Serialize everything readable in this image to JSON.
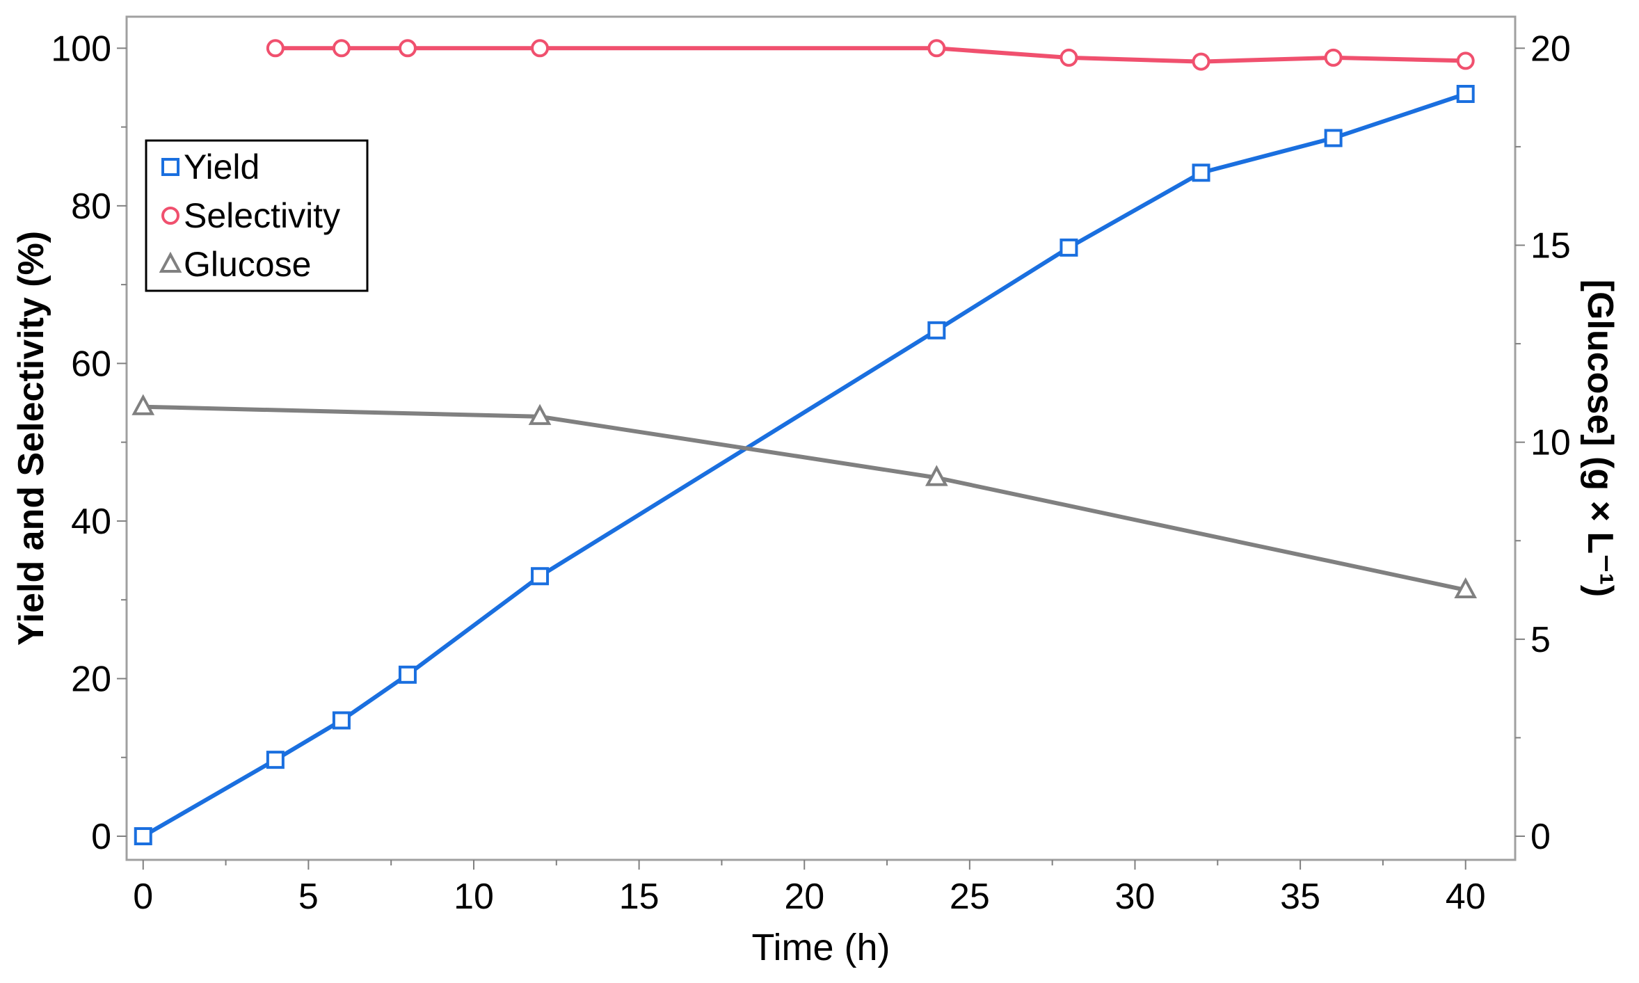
{
  "chart_data": {
    "type": "line",
    "title": "",
    "xlabel": "Time (h)",
    "ylabel": "Yield and Selectivity (%)",
    "y2label": "[Glucose] (g × L⁻¹)",
    "xlim": [
      -0.5,
      41.5
    ],
    "ylim": [
      -3,
      104
    ],
    "y2lim": [
      -0.6,
      20.8
    ],
    "xticks": [
      0,
      5,
      10,
      15,
      20,
      25,
      30,
      35,
      40
    ],
    "yticks": [
      0,
      20,
      40,
      60,
      80,
      100
    ],
    "y2ticks": [
      0,
      5,
      10,
      15,
      20
    ],
    "grid": false,
    "legend_position": "top-left",
    "series": [
      {
        "name": "Yield",
        "axis": "left",
        "marker": "square",
        "color": "#1a6fdf",
        "x": [
          0,
          4,
          6,
          8,
          12,
          24,
          28,
          32,
          36,
          40
        ],
        "y": [
          0,
          9.7,
          14.7,
          20.5,
          33,
          64.2,
          74.7,
          84.2,
          88.6,
          94.2
        ]
      },
      {
        "name": "Selectivity",
        "axis": "left",
        "marker": "circle",
        "color": "#f0506e",
        "x": [
          4,
          6,
          8,
          12,
          24,
          28,
          32,
          36,
          40
        ],
        "y": [
          100,
          100,
          100,
          100,
          100,
          98.8,
          98.3,
          98.8,
          98.4
        ]
      },
      {
        "name": "Glucose",
        "axis": "right",
        "marker": "triangle",
        "color": "#808080",
        "x": [
          0,
          12,
          24,
          40
        ],
        "y": [
          10.9,
          10.65,
          9.1,
          6.25
        ]
      }
    ]
  }
}
